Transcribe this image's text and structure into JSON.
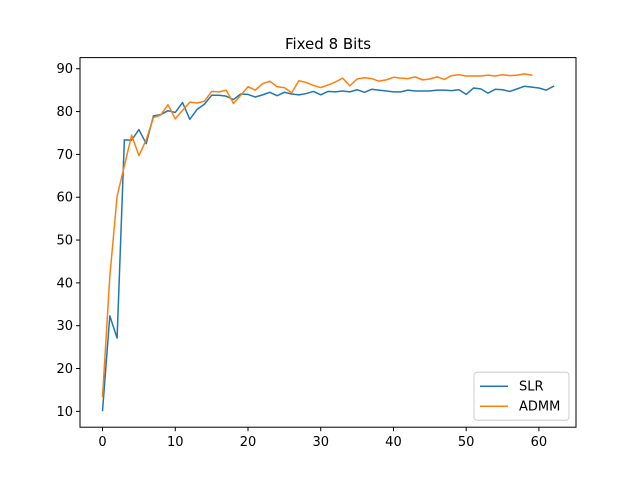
{
  "chart_data": {
    "type": "line",
    "title": "Fixed 8 Bits",
    "xlabel": "",
    "ylabel": "",
    "xlim": [
      -3.1,
      65.1
    ],
    "ylim": [
      6.3,
      92.6
    ],
    "xticks": [
      0,
      10,
      20,
      30,
      40,
      50,
      60
    ],
    "yticks": [
      10,
      20,
      30,
      40,
      50,
      60,
      70,
      80,
      90
    ],
    "grid": false,
    "legend": "bottom-right",
    "series": [
      {
        "name": "SLR",
        "color": "#1f77b4",
        "x": [
          0,
          1,
          2,
          3,
          4,
          5,
          6,
          7,
          8,
          9,
          10,
          11,
          12,
          13,
          14,
          15,
          16,
          17,
          18,
          19,
          20,
          21,
          22,
          23,
          24,
          25,
          26,
          27,
          28,
          29,
          30,
          31,
          32,
          33,
          34,
          35,
          36,
          37,
          38,
          39,
          40,
          41,
          42,
          43,
          44,
          45,
          46,
          47,
          48,
          49,
          50,
          51,
          52,
          53,
          54,
          55,
          56,
          57,
          58,
          59,
          60,
          61,
          62
        ],
        "y": [
          10.2,
          32.3,
          27.1,
          73.4,
          73.3,
          75.8,
          72.5,
          79.0,
          79.3,
          80.2,
          79.8,
          82.1,
          78.2,
          80.5,
          81.7,
          83.8,
          83.8,
          83.6,
          82.8,
          84.1,
          84.0,
          83.4,
          83.9,
          84.5,
          83.7,
          84.5,
          84.1,
          83.9,
          84.2,
          84.7,
          83.9,
          84.7,
          84.6,
          84.8,
          84.6,
          85.1,
          84.5,
          85.2,
          85.0,
          84.8,
          84.6,
          84.6,
          85.0,
          84.8,
          84.8,
          84.8,
          85.0,
          85.0,
          84.9,
          85.1,
          84.0,
          85.5,
          85.3,
          84.3,
          85.2,
          85.1,
          84.7,
          85.3,
          85.9,
          85.7,
          85.5,
          85.0,
          85.9
        ]
      },
      {
        "name": "ADMM",
        "color": "#ff7f0e",
        "x": [
          0,
          1,
          2,
          3,
          4,
          5,
          6,
          7,
          8,
          9,
          10,
          11,
          12,
          13,
          14,
          15,
          16,
          17,
          18,
          19,
          20,
          21,
          22,
          23,
          24,
          25,
          26,
          27,
          28,
          29,
          30,
          31,
          32,
          33,
          34,
          35,
          36,
          37,
          38,
          39,
          40,
          41,
          42,
          43,
          44,
          45,
          46,
          47,
          48,
          49,
          50,
          51,
          52,
          53,
          54,
          55,
          56,
          57,
          58,
          59
        ],
        "y": [
          13.5,
          41.5,
          60.2,
          67.3,
          74.5,
          69.7,
          73.4,
          78.6,
          79.2,
          81.6,
          78.3,
          80.3,
          82.2,
          82.0,
          82.4,
          84.7,
          84.6,
          85.0,
          81.9,
          83.8,
          85.8,
          85.0,
          86.5,
          87.1,
          85.8,
          85.6,
          84.4,
          87.2,
          86.8,
          86.1,
          85.6,
          86.2,
          86.9,
          87.8,
          86.0,
          87.6,
          87.9,
          87.7,
          87.1,
          87.4,
          88.0,
          87.8,
          87.7,
          88.1,
          87.4,
          87.6,
          88.1,
          87.5,
          88.4,
          88.6,
          88.3,
          88.3,
          88.3,
          88.5,
          88.3,
          88.6,
          88.4,
          88.5,
          88.8,
          88.5
        ]
      }
    ]
  }
}
